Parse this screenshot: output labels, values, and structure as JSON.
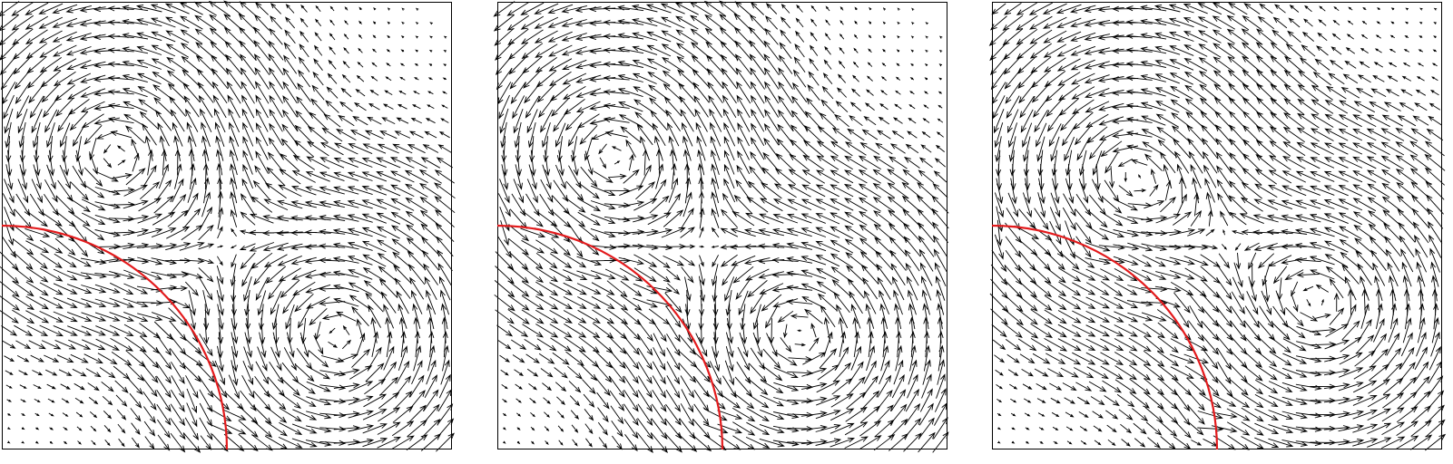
{
  "chart_data": [
    {
      "type": "vector-field",
      "domain": {
        "x": [
          0,
          1
        ],
        "y": [
          0,
          1
        ]
      },
      "axes_visible": false,
      "grid": false,
      "frame": "box",
      "vortices": [
        {
          "center": [
            0.25,
            0.66
          ],
          "sense": "counter-clockwise"
        },
        {
          "center": [
            0.75,
            0.25
          ],
          "sense": "counter-clockwise"
        }
      ],
      "interface": {
        "shape": "quarter-circle",
        "center": [
          0,
          0
        ],
        "radius": 0.5,
        "color": "#e31a1c"
      }
    },
    {
      "type": "vector-field",
      "domain": {
        "x": [
          0,
          1
        ],
        "y": [
          0,
          1
        ]
      },
      "axes_visible": false,
      "grid": false,
      "frame": "box",
      "vortices": [
        {
          "center": [
            0.25,
            0.66
          ],
          "sense": "counter-clockwise"
        },
        {
          "center": [
            0.68,
            0.25
          ],
          "sense": "counter-clockwise"
        }
      ],
      "interface": {
        "shape": "quarter-circle",
        "center": [
          0,
          0
        ],
        "radius": 0.5,
        "color": "#e31a1c"
      }
    },
    {
      "type": "vector-field",
      "domain": {
        "x": [
          0,
          1
        ],
        "y": [
          0,
          1
        ]
      },
      "axes_visible": false,
      "grid": false,
      "frame": "box",
      "vortices": [
        {
          "center": [
            0.3,
            0.62
          ],
          "sense": "counter-clockwise"
        },
        {
          "center": [
            0.74,
            0.32
          ],
          "sense": "counter-clockwise"
        }
      ],
      "interface": {
        "shape": "quarter-circle",
        "center": [
          0,
          0
        ],
        "radius": 0.5,
        "color": "#e31a1c"
      }
    }
  ],
  "colors": {
    "arrow": "#000000",
    "frame": "#000000",
    "interface": "#e31a1c",
    "background": "#ffffff"
  }
}
